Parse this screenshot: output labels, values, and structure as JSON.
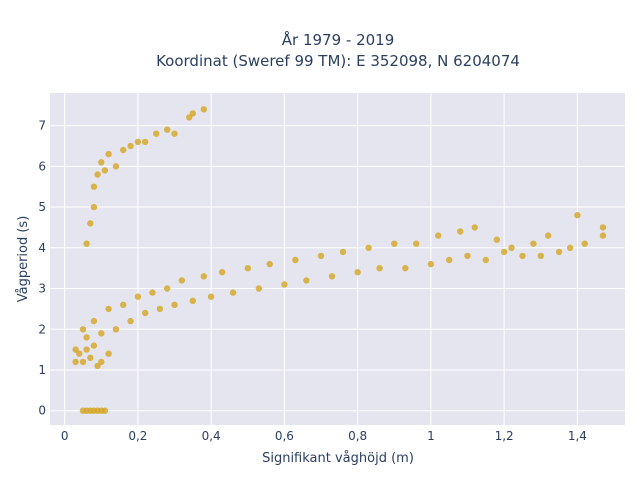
{
  "chart_data": {
    "type": "scatter",
    "title_lines": [
      "År 1979 - 2019",
      "Koordinat (Sweref 99 TM): E 352098, N 6204074"
    ],
    "xlabel": "Signifikant våghöjd (m)",
    "ylabel": "Vågperiod (s)",
    "xlim": [
      -0.04,
      1.53
    ],
    "ylim": [
      -0.35,
      7.8
    ],
    "x_ticks": [
      0,
      0.2,
      0.4,
      0.6,
      0.8,
      1,
      1.2,
      1.4
    ],
    "x_tick_labels": [
      "0",
      "0,2",
      "0,4",
      "0,6",
      "0,8",
      "1",
      "1,2",
      "1,4"
    ],
    "y_ticks": [
      0,
      1,
      2,
      3,
      4,
      5,
      6,
      7
    ],
    "y_tick_labels": [
      "0",
      "1",
      "2",
      "3",
      "4",
      "5",
      "6",
      "7"
    ],
    "grid": true,
    "background": "#e5e5f0",
    "marker_color": "#d4a520",
    "series": [
      {
        "points": [
          [
            0.05,
            0.0
          ],
          [
            0.06,
            0.0
          ],
          [
            0.07,
            0.0
          ],
          [
            0.08,
            0.0
          ],
          [
            0.09,
            0.0
          ],
          [
            0.1,
            0.0
          ],
          [
            0.11,
            0.0
          ],
          [
            0.03,
            1.2
          ],
          [
            0.03,
            1.5
          ],
          [
            0.04,
            1.4
          ],
          [
            0.05,
            1.2
          ],
          [
            0.06,
            1.5
          ],
          [
            0.07,
            1.3
          ],
          [
            0.08,
            1.6
          ],
          [
            0.09,
            1.1
          ],
          [
            0.1,
            1.2
          ],
          [
            0.12,
            1.4
          ],
          [
            0.05,
            2.0
          ],
          [
            0.06,
            1.8
          ],
          [
            0.08,
            2.2
          ],
          [
            0.1,
            1.9
          ],
          [
            0.12,
            2.5
          ],
          [
            0.14,
            2.0
          ],
          [
            0.16,
            2.6
          ],
          [
            0.18,
            2.2
          ],
          [
            0.2,
            2.8
          ],
          [
            0.22,
            2.4
          ],
          [
            0.24,
            2.9
          ],
          [
            0.26,
            2.5
          ],
          [
            0.28,
            3.0
          ],
          [
            0.3,
            2.6
          ],
          [
            0.32,
            3.2
          ],
          [
            0.35,
            2.7
          ],
          [
            0.38,
            3.3
          ],
          [
            0.4,
            2.8
          ],
          [
            0.43,
            3.4
          ],
          [
            0.46,
            2.9
          ],
          [
            0.5,
            3.5
          ],
          [
            0.53,
            3.0
          ],
          [
            0.56,
            3.6
          ],
          [
            0.6,
            3.1
          ],
          [
            0.63,
            3.7
          ],
          [
            0.66,
            3.2
          ],
          [
            0.7,
            3.8
          ],
          [
            0.73,
            3.3
          ],
          [
            0.76,
            3.9
          ],
          [
            0.8,
            3.4
          ],
          [
            0.83,
            4.0
          ],
          [
            0.86,
            3.5
          ],
          [
            0.9,
            4.1
          ],
          [
            0.93,
            3.5
          ],
          [
            0.96,
            4.1
          ],
          [
            1.0,
            3.6
          ],
          [
            1.02,
            4.3
          ],
          [
            1.05,
            3.7
          ],
          [
            1.08,
            4.4
          ],
          [
            1.1,
            3.8
          ],
          [
            1.12,
            4.5
          ],
          [
            1.15,
            3.7
          ],
          [
            1.18,
            4.2
          ],
          [
            1.2,
            3.9
          ],
          [
            1.22,
            4.0
          ],
          [
            1.25,
            3.8
          ],
          [
            1.28,
            4.1
          ],
          [
            1.3,
            3.8
          ],
          [
            1.32,
            4.3
          ],
          [
            1.35,
            3.9
          ],
          [
            1.38,
            4.0
          ],
          [
            1.4,
            4.8
          ],
          [
            1.42,
            4.1
          ],
          [
            1.47,
            4.5
          ],
          [
            1.47,
            4.3
          ],
          [
            0.06,
            4.1
          ],
          [
            0.07,
            4.6
          ],
          [
            0.08,
            5.0
          ],
          [
            0.08,
            5.5
          ],
          [
            0.09,
            5.8
          ],
          [
            0.1,
            6.1
          ],
          [
            0.11,
            5.9
          ],
          [
            0.12,
            6.3
          ],
          [
            0.14,
            6.0
          ],
          [
            0.16,
            6.4
          ],
          [
            0.18,
            6.5
          ],
          [
            0.2,
            6.6
          ],
          [
            0.22,
            6.6
          ],
          [
            0.25,
            6.8
          ],
          [
            0.28,
            6.9
          ],
          [
            0.3,
            6.8
          ],
          [
            0.34,
            7.2
          ],
          [
            0.38,
            7.4
          ],
          [
            0.35,
            7.3
          ]
        ]
      }
    ]
  }
}
